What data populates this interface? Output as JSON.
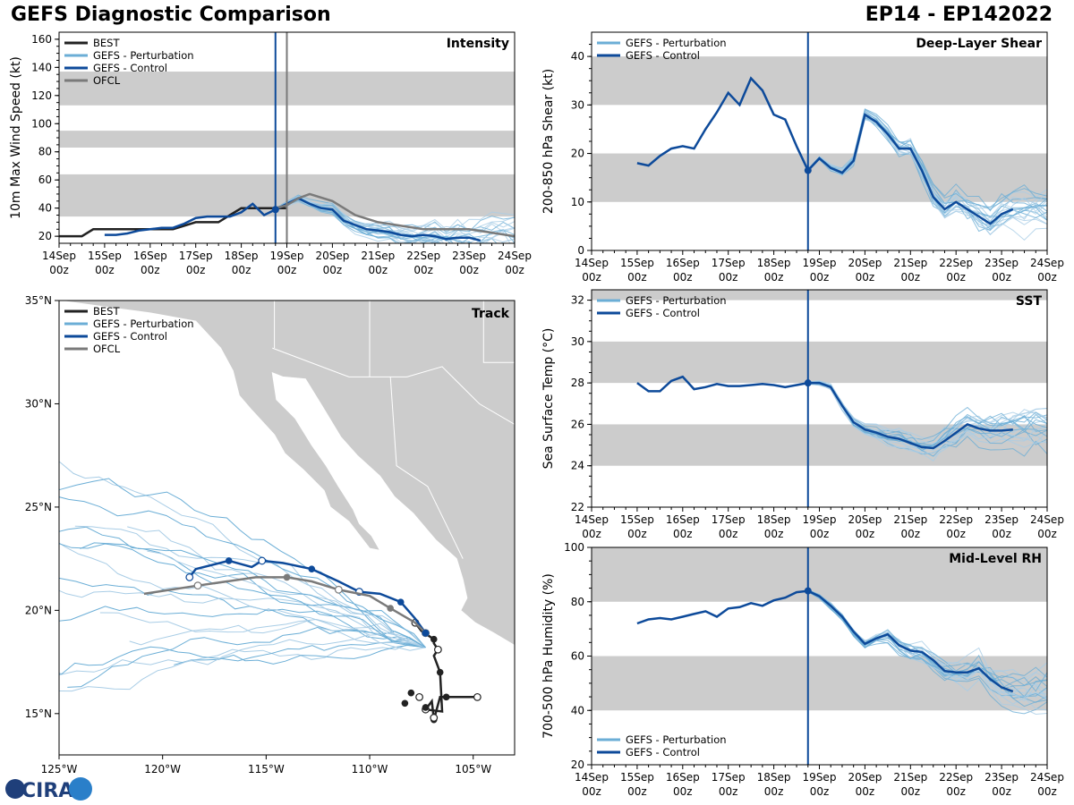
{
  "header": {
    "title": "GEFS Diagnostic Comparison",
    "storm_id": "EP14 - EP142022"
  },
  "logo_text": "CIRA",
  "colors": {
    "best": "#222222",
    "perturbation": "#6baed6",
    "control": "#0d4a9a",
    "ofcl": "#7a7a7a",
    "band": "#cccccc",
    "land": "#cccccc"
  },
  "time_axis": {
    "ticks": [
      "14Sep\n00z",
      "15Sep\n00z",
      "16Sep\n00z",
      "17Sep\n00z",
      "18Sep\n00z",
      "19Sep\n00z",
      "20Sep\n00z",
      "21Sep\n00z",
      "22Sep\n00z",
      "23Sep\n00z",
      "24Sep\n00z"
    ],
    "initial_day": 18.75,
    "ofcl_day": 19.0
  },
  "chart_data": [
    {
      "id": "intensity",
      "type": "line",
      "title": "Intensity",
      "ylabel": "10m Max Wind Speed (kt)",
      "xlim": [
        14,
        24
      ],
      "ylim": [
        15,
        165
      ],
      "yticks": [
        20,
        40,
        60,
        80,
        100,
        120,
        140,
        160
      ],
      "bands": [
        [
          34,
          64
        ],
        [
          83,
          95
        ],
        [
          113,
          137
        ]
      ],
      "legend": [
        "BEST",
        "GEFS - Perturbation",
        "GEFS - Control",
        "OFCL"
      ],
      "series": [
        {
          "name": "BEST",
          "x": [
            14,
            14.5,
            14.75,
            15,
            15.5,
            16,
            16.5,
            17,
            17.25,
            17.5,
            17.75,
            18,
            18.25,
            18.5,
            18.75,
            19
          ],
          "y": [
            20,
            20,
            25,
            25,
            25,
            25,
            25,
            30,
            30,
            30,
            35,
            40,
            40,
            40,
            40,
            40
          ]
        },
        {
          "name": "GEFS - Control",
          "x": [
            15,
            15.25,
            15.5,
            15.75,
            16,
            16.25,
            16.5,
            16.75,
            17,
            17.25,
            17.5,
            17.75,
            18,
            18.25,
            18.5,
            18.75,
            19,
            19.25,
            19.5,
            19.75,
            20,
            20.25,
            20.5,
            20.75,
            21,
            21.25,
            21.5,
            21.75,
            22,
            22.25,
            22.5,
            22.75,
            23,
            23.25
          ],
          "y": [
            21,
            21,
            22,
            24,
            25,
            26,
            26,
            29,
            33,
            34,
            34,
            34,
            37,
            43,
            35,
            39,
            43,
            47,
            43,
            40,
            39,
            31,
            28,
            25,
            24,
            23,
            21,
            20,
            21,
            20,
            18,
            19,
            19,
            17
          ]
        },
        {
          "name": "OFCL",
          "x": [
            18.75,
            19,
            19.25,
            19.5,
            20,
            20.5,
            21,
            22,
            23,
            24
          ],
          "y": [
            40,
            42,
            47,
            50,
            45,
            35,
            30,
            25,
            25,
            20
          ]
        }
      ],
      "perturbation_count": 20
    },
    {
      "id": "shear",
      "type": "line",
      "title": "Deep-Layer Shear",
      "ylabel": "200-850 hPa Shear (kt)",
      "xlim": [
        14,
        24
      ],
      "ylim": [
        0,
        45
      ],
      "yticks": [
        0,
        10,
        20,
        30,
        40
      ],
      "bands": [
        [
          10,
          20
        ],
        [
          30,
          40
        ]
      ],
      "legend": [
        "GEFS - Perturbation",
        "GEFS - Control"
      ],
      "series": [
        {
          "name": "GEFS - Control",
          "x": [
            15,
            15.25,
            15.5,
            15.75,
            16,
            16.25,
            16.5,
            16.75,
            17,
            17.25,
            17.5,
            17.75,
            18,
            18.25,
            18.5,
            18.75,
            19,
            19.25,
            19.5,
            19.75,
            20,
            20.25,
            20.5,
            20.75,
            21,
            21.25,
            21.5,
            21.75,
            22,
            22.25,
            22.5,
            22.75,
            23,
            23.25
          ],
          "y": [
            18,
            17.5,
            19.5,
            21,
            21.5,
            21,
            25,
            28.5,
            32.5,
            30,
            35.5,
            33,
            28,
            27,
            21.5,
            16.5,
            19,
            17,
            16,
            18.5,
            28,
            26.5,
            24,
            21,
            21,
            16.5,
            11,
            8.5,
            10,
            8.5,
            7,
            5.5,
            7.5,
            8.5
          ]
        }
      ],
      "perturbation_count": 20
    },
    {
      "id": "sst",
      "type": "line",
      "title": "SST",
      "ylabel": "Sea Surface Temp (°C)",
      "xlim": [
        14,
        24
      ],
      "ylim": [
        22,
        32.5
      ],
      "yticks": [
        22,
        24,
        26,
        28,
        30,
        32
      ],
      "bands": [
        [
          24,
          26
        ],
        [
          28,
          30
        ],
        [
          32,
          33
        ]
      ],
      "legend": [
        "GEFS - Perturbation",
        "GEFS - Control"
      ],
      "series": [
        {
          "name": "GEFS - Control",
          "x": [
            15,
            15.25,
            15.5,
            15.75,
            16,
            16.25,
            16.5,
            16.75,
            17,
            17.25,
            17.5,
            17.75,
            18,
            18.25,
            18.5,
            18.75,
            19,
            19.25,
            19.5,
            19.75,
            20,
            20.25,
            20.5,
            20.75,
            21,
            21.25,
            21.5,
            21.75,
            22,
            22.25,
            22.5,
            22.75,
            23,
            23.25
          ],
          "y": [
            28.0,
            27.6,
            27.6,
            28.1,
            28.3,
            27.7,
            27.8,
            27.95,
            27.85,
            27.85,
            27.9,
            27.95,
            27.9,
            27.8,
            27.9,
            28.0,
            28.0,
            27.8,
            26.9,
            26.1,
            25.75,
            25.6,
            25.4,
            25.3,
            25.1,
            24.9,
            24.85,
            25.2,
            25.6,
            26.0,
            25.8,
            25.7,
            25.7,
            25.75
          ]
        }
      ],
      "perturbation_count": 20
    },
    {
      "id": "rh",
      "type": "line",
      "title": "Mid-Level RH",
      "ylabel": "700-500 hPa Humidity (%)",
      "xlim": [
        14,
        24
      ],
      "ylim": [
        20,
        100
      ],
      "yticks": [
        20,
        40,
        60,
        80,
        100
      ],
      "bands": [
        [
          40,
          60
        ],
        [
          80,
          100
        ]
      ],
      "legend": [
        "GEFS - Perturbation",
        "GEFS - Control"
      ],
      "series": [
        {
          "name": "GEFS - Control",
          "x": [
            15,
            15.25,
            15.5,
            15.75,
            16,
            16.25,
            16.5,
            16.75,
            17,
            17.25,
            17.5,
            17.75,
            18,
            18.25,
            18.5,
            18.75,
            19,
            19.25,
            19.5,
            19.75,
            20,
            20.25,
            20.5,
            20.75,
            21,
            21.25,
            21.5,
            21.75,
            22,
            22.25,
            22.5,
            22.75,
            23,
            23.25
          ],
          "y": [
            72,
            73.5,
            74,
            73.5,
            74.5,
            75.5,
            76.5,
            74.5,
            77.5,
            78,
            79.5,
            78.5,
            80.5,
            81.5,
            83.5,
            84,
            82,
            78.5,
            74.5,
            69,
            64.5,
            66.5,
            68,
            64,
            62,
            61.5,
            58.5,
            54.5,
            54,
            54,
            55.5,
            51.5,
            48.5,
            47
          ]
        }
      ],
      "perturbation_count": 20
    },
    {
      "id": "track",
      "type": "scatter",
      "title": "Track",
      "xlim": [
        -125,
        -103
      ],
      "ylim": [
        13,
        35
      ],
      "xticks": [
        "125°W",
        "120°W",
        "115°W",
        "110°W",
        "105°W"
      ],
      "yticks": [
        "15°N",
        "20°N",
        "25°N",
        "30°N",
        "35°N"
      ],
      "legend": [
        "BEST",
        "GEFS - Perturbation",
        "GEFS - Control",
        "OFCL"
      ],
      "series": [
        {
          "name": "BEST",
          "lon": [
            -104.8,
            -106.6,
            -106.9,
            -107.0,
            -107.3,
            -106.5,
            -106.6,
            -106.9,
            -106.7,
            -106.9,
            -106.9,
            -107.5,
            -107.8,
            -107.6
          ],
          "lat": [
            15.8,
            15.8,
            14.7,
            15.6,
            15.2,
            15.1,
            17.0,
            17.8,
            18.1,
            18.4,
            18.6,
            19.0,
            19.4,
            19.3
          ]
        },
        {
          "name": "GEFS - Control",
          "lon": [
            -107.3,
            -107.8,
            -108.5,
            -109.5,
            -110.5,
            -111.5,
            -112.8,
            -114.2,
            -115.2,
            -115.7,
            -116.8,
            -118.4,
            -118.7
          ],
          "lat": [
            18.9,
            19.6,
            20.4,
            20.8,
            20.9,
            21.4,
            22.0,
            22.3,
            22.4,
            22.1,
            22.4,
            22.0,
            21.6
          ]
        },
        {
          "name": "OFCL",
          "lon": [
            -107.3,
            -107.8,
            -109.0,
            -110.0,
            -111.5,
            -112.8,
            -114.0,
            -115.5,
            -118.3,
            -120.9
          ],
          "lat": [
            18.9,
            19.4,
            20.1,
            20.7,
            21.0,
            21.4,
            21.6,
            21.6,
            21.2,
            20.8
          ]
        },
        {
          "name": "BEST extra points",
          "lon": [
            -107.6,
            -108.3,
            -108.0,
            -107.3,
            -106.9,
            -106.3
          ],
          "lat": [
            15.8,
            15.5,
            16.0,
            15.3,
            14.8,
            15.8
          ]
        }
      ],
      "perturbation_count": 20
    }
  ]
}
